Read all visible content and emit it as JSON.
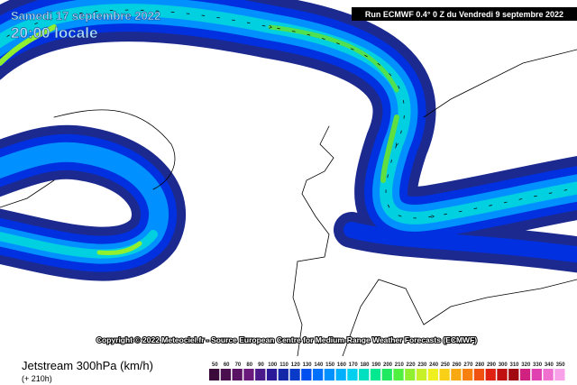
{
  "header": {
    "date": "Samedi 17 septembre 2022",
    "time": "20:00 locale",
    "run": "Run ECMWF 0.4° 0 Z du Vendredi 9 septembre 2022"
  },
  "copyright": "Copyright © 2022 Meteociel.fr - Source European Centre for Medium-Range Weather Forecasts (ECMWF)",
  "footer": {
    "title": "Jetstream 300hPa (km/h)",
    "lead": "(+ 210h)"
  },
  "scale": {
    "values": [
      50,
      60,
      70,
      80,
      90,
      100,
      110,
      120,
      130,
      140,
      150,
      160,
      170,
      180,
      190,
      200,
      210,
      220,
      230,
      240,
      250,
      260,
      270,
      280,
      290,
      300,
      310,
      320,
      330,
      340,
      350
    ],
    "colors": [
      "#3a0a3a",
      "#4a0f4f",
      "#5a1464",
      "#6a1a7a",
      "#4a1a8a",
      "#2a1a9a",
      "#1428a8",
      "#0a3ac8",
      "#0050f0",
      "#0070ff",
      "#0090ff",
      "#00b0ff",
      "#00d0f0",
      "#00e0c0",
      "#00e890",
      "#20e860",
      "#50f040",
      "#90f030",
      "#c8f028",
      "#f0f020",
      "#f8d018",
      "#f8a810",
      "#f88010",
      "#f05010",
      "#e02010",
      "#c01010",
      "#a00a10",
      "#d02080",
      "#e040b0",
      "#f070d0",
      "#f8a0e8"
    ]
  }
}
